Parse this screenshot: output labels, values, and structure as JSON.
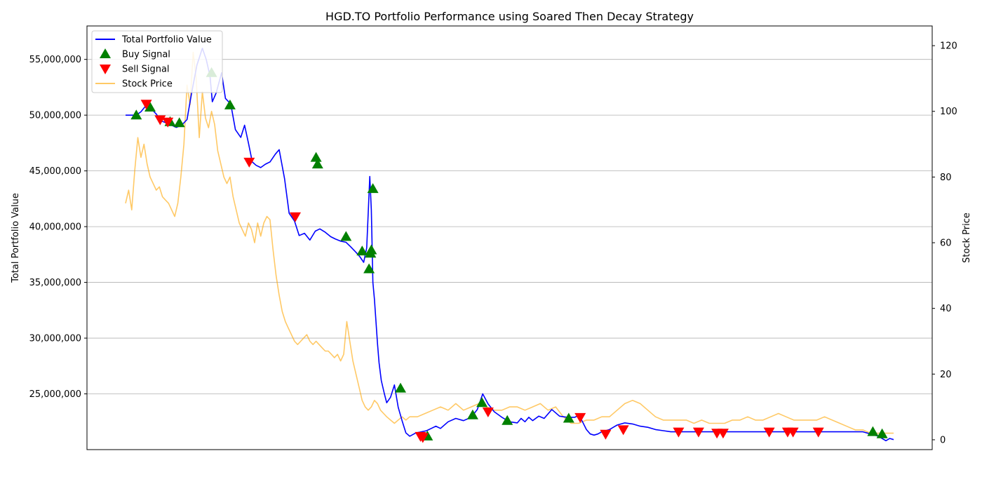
{
  "chart_data": {
    "type": "line",
    "title": "HGD.TO Portfolio Performance using Soared Then Decay Strategy",
    "xlabel": "",
    "ylabel": "Total Portfolio Value",
    "ylabel_right": "Stock Price",
    "ylim": [
      20000000,
      58000000
    ],
    "ylim_right": [
      -3,
      126
    ],
    "x_range": [
      0,
      1000
    ],
    "grid": "horizontal",
    "legend_position": "top-left",
    "yticks": [
      {
        "value": 25000000,
        "label": "25,000,000"
      },
      {
        "value": 30000000,
        "label": "30,000,000"
      },
      {
        "value": 35000000,
        "label": "35,000,000"
      },
      {
        "value": 40000000,
        "label": "40,000,000"
      },
      {
        "value": 45000000,
        "label": "45,000,000"
      },
      {
        "value": 50000000,
        "label": "50,000,000"
      },
      {
        "value": 55000000,
        "label": "55,000,000"
      }
    ],
    "yticks_right": [
      {
        "value": 0,
        "label": "0"
      },
      {
        "value": 20,
        "label": "20"
      },
      {
        "value": 40,
        "label": "40"
      },
      {
        "value": 60,
        "label": "60"
      },
      {
        "value": 80,
        "label": "80"
      },
      {
        "value": 100,
        "label": "100"
      },
      {
        "value": 120,
        "label": "120"
      }
    ],
    "series": [
      {
        "name": "Total Portfolio Value",
        "color": "#0000ff",
        "axis": "left",
        "x": [
          0,
          14,
          20,
          27,
          33,
          40,
          46,
          53,
          60,
          66,
          73,
          80,
          86,
          93,
          100,
          105,
          110,
          113,
          118,
          125,
          130,
          137,
          143,
          150,
          155,
          160,
          165,
          170,
          176,
          182,
          188,
          195,
          200,
          207,
          213,
          220,
          226,
          233,
          240,
          247,
          253,
          260,
          267,
          273,
          280,
          287,
          293,
          300,
          305,
          310,
          314,
          318,
          320,
          322,
          324,
          326,
          328,
          330,
          333,
          337,
          340,
          345,
          350,
          355,
          360,
          365,
          370,
          378,
          385,
          392,
          398,
          404,
          410,
          420,
          430,
          440,
          450,
          458,
          465,
          472,
          480,
          490,
          500,
          510,
          515,
          520,
          525,
          530,
          538,
          545,
          555,
          565,
          575,
          585,
          590,
          595,
          600,
          605,
          610,
          615,
          620,
          625,
          630,
          635,
          640,
          645,
          650,
          660,
          670,
          680,
          690,
          700,
          710,
          720,
          730,
          740,
          750,
          760,
          770,
          780,
          790,
          800,
          820,
          840,
          860,
          880,
          900,
          920,
          940,
          960,
          970,
          980,
          990,
          995,
          1000
        ],
        "y": [
          50000000,
          50000000,
          50300000,
          50900000,
          50600000,
          50100000,
          49500000,
          49300000,
          49100000,
          48900000,
          49100000,
          49600000,
          52000000,
          54500000,
          56000000,
          55000000,
          53500000,
          51200000,
          52000000,
          53800000,
          51500000,
          51000000,
          48700000,
          48000000,
          49100000,
          47500000,
          45800000,
          45500000,
          45300000,
          45600000,
          45800000,
          46500000,
          46900000,
          44300000,
          41200000,
          40500000,
          39200000,
          39400000,
          38800000,
          39600000,
          39800000,
          39500000,
          39100000,
          38900000,
          38700000,
          38600000,
          38200000,
          37700000,
          37300000,
          36800000,
          38100000,
          44500000,
          41500000,
          35000000,
          33500000,
          31500000,
          29500000,
          27800000,
          26200000,
          25000000,
          24200000,
          24700000,
          25800000,
          23800000,
          22600000,
          21500000,
          21200000,
          21500000,
          21600000,
          21700000,
          21900000,
          22100000,
          21900000,
          22500000,
          22800000,
          22600000,
          22900000,
          23600000,
          25000000,
          24100000,
          23400000,
          22900000,
          22500000,
          22400000,
          22800000,
          22500000,
          22900000,
          22600000,
          23000000,
          22800000,
          23600000,
          23000000,
          22900000,
          22900000,
          23100000,
          22500000,
          21800000,
          21400000,
          21300000,
          21400000,
          21600000,
          21700000,
          21800000,
          22000000,
          22200000,
          22300000,
          22400000,
          22300000,
          22100000,
          22000000,
          21800000,
          21700000,
          21600000,
          21600000,
          21600000,
          21600000,
          21600000,
          21600000,
          21600000,
          21600000,
          21600000,
          21600000,
          21600000,
          21600000,
          21600000,
          21600000,
          21600000,
          21600000,
          21600000,
          21600000,
          21400000,
          21200000,
          20800000,
          21000000,
          20900000
        ]
      },
      {
        "name": "Stock Price",
        "color": "#ffa500",
        "axis": "right",
        "x": [
          0,
          4,
          8,
          12,
          16,
          20,
          24,
          28,
          32,
          36,
          40,
          44,
          48,
          52,
          56,
          60,
          64,
          68,
          72,
          76,
          80,
          84,
          88,
          92,
          96,
          100,
          104,
          108,
          112,
          116,
          120,
          124,
          128,
          132,
          136,
          140,
          144,
          148,
          152,
          156,
          160,
          164,
          168,
          172,
          176,
          180,
          184,
          188,
          192,
          196,
          200,
          204,
          208,
          212,
          216,
          220,
          224,
          228,
          232,
          236,
          240,
          244,
          248,
          252,
          256,
          260,
          264,
          268,
          272,
          276,
          280,
          284,
          288,
          292,
          296,
          300,
          304,
          308,
          312,
          316,
          320,
          324,
          328,
          332,
          336,
          340,
          345,
          350,
          355,
          360,
          365,
          370,
          380,
          390,
          400,
          410,
          420,
          430,
          440,
          450,
          460,
          470,
          480,
          490,
          500,
          510,
          520,
          530,
          540,
          550,
          560,
          570,
          580,
          590,
          600,
          610,
          620,
          630,
          640,
          650,
          660,
          670,
          680,
          690,
          700,
          710,
          720,
          730,
          740,
          750,
          760,
          770,
          780,
          790,
          800,
          810,
          820,
          830,
          840,
          850,
          860,
          870,
          880,
          890,
          900,
          910,
          920,
          930,
          940,
          950,
          960,
          970,
          980,
          990,
          1000
        ],
        "y": [
          72,
          76,
          70,
          82,
          92,
          86,
          90,
          84,
          80,
          78,
          76,
          77,
          74,
          73,
          72,
          70,
          68,
          72,
          80,
          90,
          108,
          102,
          118,
          110,
          92,
          106,
          98,
          95,
          100,
          96,
          88,
          84,
          80,
          78,
          80,
          74,
          70,
          66,
          64,
          62,
          66,
          64,
          60,
          66,
          62,
          66,
          68,
          67,
          58,
          50,
          44,
          39,
          36,
          34,
          32,
          30,
          29,
          30,
          31,
          32,
          30,
          29,
          30,
          29,
          28,
          27,
          27,
          26,
          25,
          26,
          24,
          26,
          36,
          30,
          24,
          20,
          16,
          12,
          10,
          9,
          10,
          12,
          11,
          9,
          8,
          7,
          6,
          5,
          6,
          7,
          6,
          7,
          7,
          8,
          9,
          10,
          9,
          11,
          9,
          10,
          11,
          10,
          9,
          9,
          10,
          10,
          9,
          10,
          11,
          9,
          10,
          7,
          5,
          5,
          6,
          6,
          7,
          7,
          9,
          11,
          12,
          11,
          9,
          7,
          6,
          6,
          6,
          6,
          5,
          6,
          5,
          5,
          5,
          6,
          6,
          7,
          6,
          6,
          7,
          8,
          7,
          6,
          6,
          6,
          6,
          7,
          6,
          5,
          4,
          3,
          3,
          2,
          2,
          2,
          2
        ]
      },
      {
        "name": "Buy Signal",
        "color": "#008000",
        "marker": "^",
        "axis": "left",
        "x": [
          14,
          32,
          58,
          70,
          112,
          136,
          248,
          250,
          287,
          308,
          317,
          319,
          320,
          322,
          358,
          393,
          452,
          464,
          497,
          577,
          973,
          985
        ],
        "y": [
          50000000,
          50700000,
          49400000,
          49300000,
          53800000,
          50900000,
          46200000,
          45600000,
          39100000,
          37800000,
          36200000,
          37600000,
          37900000,
          43400000,
          25500000,
          21200000,
          23100000,
          24200000,
          22600000,
          22800000,
          21600000,
          21400000
        ]
      },
      {
        "name": "Sell Signal",
        "color": "#ff0000",
        "marker": "v",
        "axis": "left",
        "x": [
          27,
          45,
          55,
          161,
          221,
          384,
          387,
          472,
          592,
          625,
          648,
          720,
          746,
          770,
          778,
          838,
          862,
          869,
          902
        ],
        "y": [
          51000000,
          49600000,
          49400000,
          45800000,
          40900000,
          21200000,
          21100000,
          23400000,
          22900000,
          21400000,
          21800000,
          21600000,
          21600000,
          21500000,
          21500000,
          21600000,
          21600000,
          21600000,
          21600000
        ]
      }
    ],
    "legend": [
      {
        "label": "Total Portfolio Value",
        "kind": "line",
        "color": "#0000ff"
      },
      {
        "label": "Buy Signal",
        "kind": "triangle-up",
        "color": "#008000"
      },
      {
        "label": "Sell Signal",
        "kind": "triangle-down",
        "color": "#ff0000"
      },
      {
        "label": "Stock Price",
        "kind": "line",
        "color": "#ffa500"
      }
    ]
  }
}
